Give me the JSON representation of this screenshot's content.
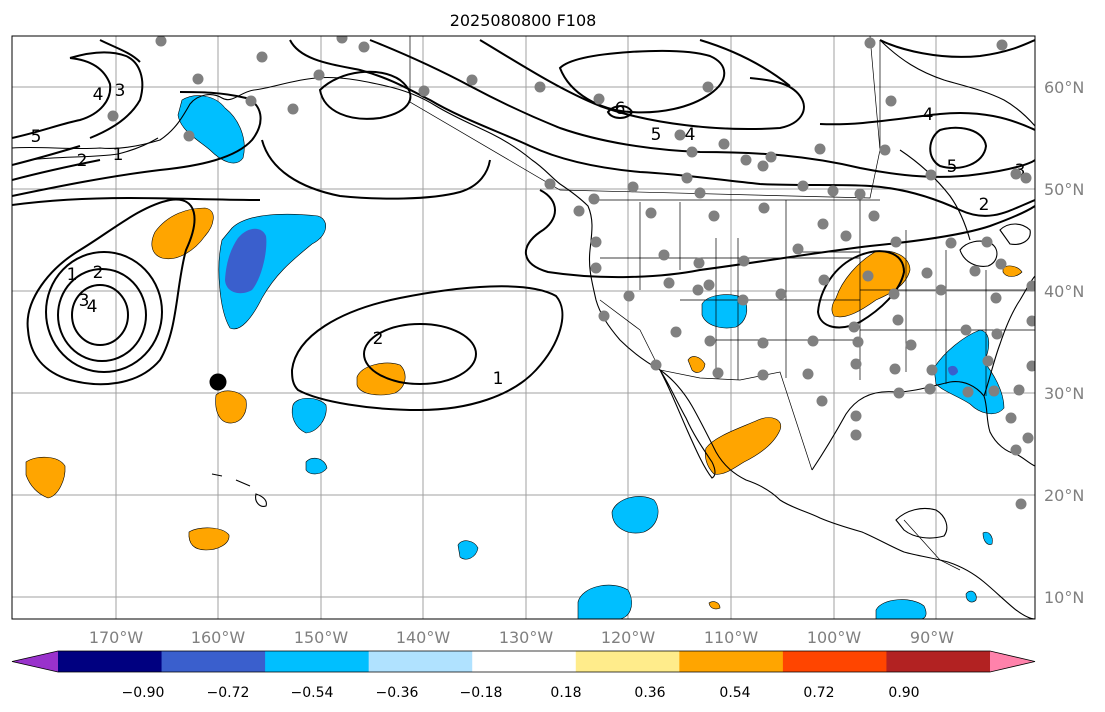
{
  "title": "2025080800 F108",
  "lon_labels": [
    "170°W",
    "160°W",
    "150°W",
    "140°W",
    "130°W",
    "120°W",
    "110°W",
    "100°W",
    "90°W"
  ],
  "lat_labels": [
    "60°N",
    "50°N",
    "40°N",
    "30°N",
    "20°N",
    "10°N"
  ],
  "colorbar": {
    "tick_labels": [
      "−0.90",
      "−0.72",
      "−0.54",
      "−0.36",
      "−0.18",
      "0.18",
      "0.36",
      "0.54",
      "0.72",
      "0.90"
    ],
    "colors": [
      "#9932cc",
      "#000080",
      "#3a5fcd",
      "#00bfff",
      "#b0e2ff",
      "#ffffff",
      "#ffec8b",
      "#ffa500",
      "#ff4500",
      "#b22222",
      "#ff82ab"
    ]
  },
  "contour_labels": [
    "4",
    "3",
    "5",
    "2",
    "1",
    "4",
    "3",
    "2",
    "1",
    "2",
    "1",
    "6",
    "5",
    "4",
    "4",
    "5",
    "3",
    "2"
  ],
  "colors": {
    "positive": "#ffa500",
    "negative": "#00bfff",
    "strong_negative": "#3a5fcd",
    "station": "#808080",
    "marker": "#000000"
  }
}
